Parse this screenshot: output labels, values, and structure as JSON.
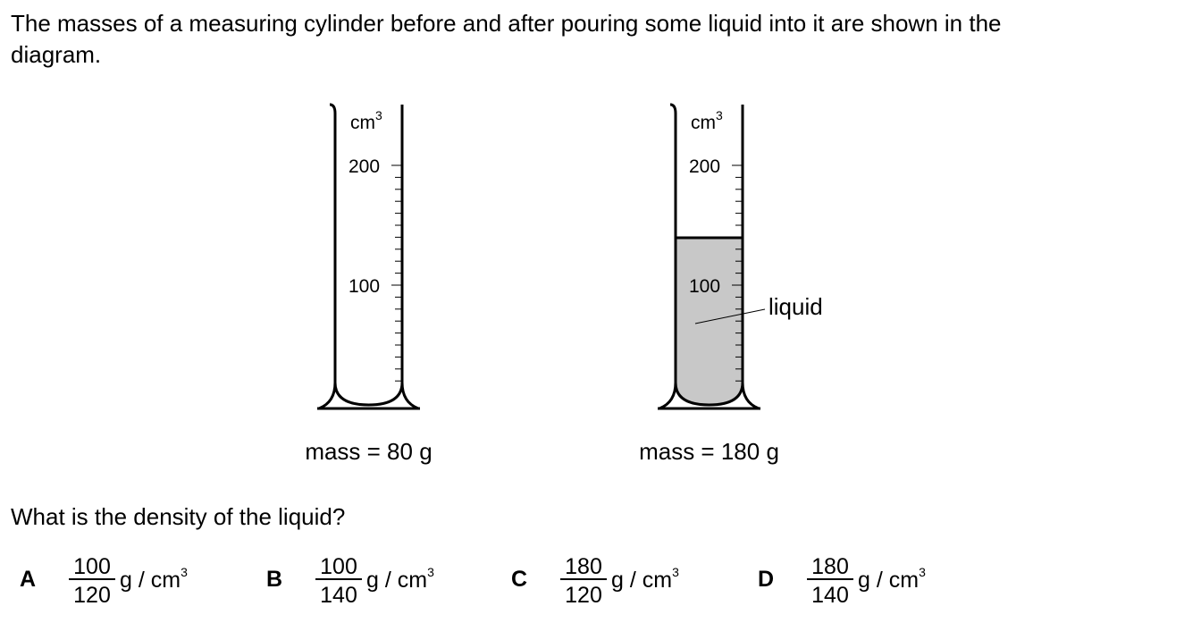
{
  "question": {
    "intro_lines": [
      "The masses of a measuring cylinder before and after pouring some liquid into it are shown in the",
      "diagram."
    ],
    "cylinders": [
      {
        "unit": "cm",
        "unit_power": "3",
        "scale_labels": [
          "200",
          "100"
        ],
        "mass": "mass = 80 g"
      },
      {
        "unit": "cm",
        "unit_power": "3",
        "scale_labels": [
          "200",
          "100"
        ],
        "liquid_label": "liquid",
        "mass": "mass = 180 g"
      }
    ],
    "prompt": "What is the density of the liquid?",
    "options": [
      {
        "letter": "A",
        "numerator": "100",
        "denominator": "120",
        "unit": "g / cm",
        "unit_power": "3"
      },
      {
        "letter": "B",
        "numerator": "100",
        "denominator": "140",
        "unit": "g / cm",
        "unit_power": "3"
      },
      {
        "letter": "C",
        "numerator": "180",
        "denominator": "120",
        "unit": "g / cm",
        "unit_power": "3"
      },
      {
        "letter": "D",
        "numerator": "180",
        "denominator": "140",
        "unit": "g / cm",
        "unit_power": "3"
      }
    ]
  }
}
